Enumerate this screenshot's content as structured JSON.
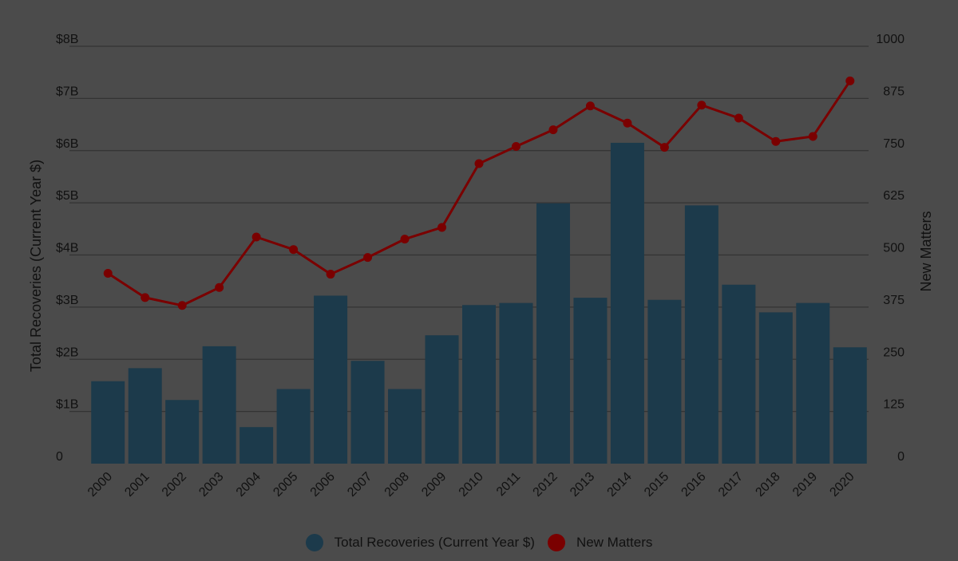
{
  "chart_data": {
    "type": "bar",
    "categories": [
      "2000",
      "2001",
      "2002",
      "2003",
      "2004",
      "2005",
      "2006",
      "2007",
      "2008",
      "2009",
      "2010",
      "2011",
      "2012",
      "2013",
      "2014",
      "2015",
      "2016",
      "2017",
      "2018",
      "2019",
      "2020"
    ],
    "series": [
      {
        "name": "Total Recoveries (Current Year $)",
        "type": "bar",
        "axis": "left",
        "color": "#1c3a4b",
        "values": [
          1.58,
          1.83,
          1.22,
          2.25,
          0.7,
          1.43,
          3.22,
          1.97,
          1.43,
          2.46,
          3.04,
          3.08,
          4.99,
          3.18,
          6.15,
          3.14,
          4.95,
          3.43,
          2.9,
          3.08,
          2.23
        ]
      },
      {
        "name": "New Matters",
        "type": "line",
        "axis": "right",
        "color": "#7a0000",
        "values": [
          456,
          398,
          379,
          422,
          543,
          513,
          454,
          494,
          538,
          566,
          719,
          760,
          800,
          857,
          816,
          758,
          859,
          828,
          772,
          784,
          917
        ]
      }
    ],
    "y_left": {
      "label": "Total Recoveries (Current Year $)",
      "range": [
        0,
        8
      ],
      "ticks": [
        0,
        1,
        2,
        3,
        4,
        5,
        6,
        7,
        8
      ],
      "tick_labels": [
        "0",
        "$1B",
        "$2B",
        "$3B",
        "$4B",
        "$5B",
        "$6B",
        "$7B",
        "$8B"
      ]
    },
    "y_right": {
      "label": "New Matters",
      "range": [
        0,
        1000
      ],
      "ticks": [
        0,
        125,
        250,
        375,
        500,
        625,
        750,
        875,
        1000
      ],
      "tick_labels": [
        "0",
        "125",
        "250",
        "375",
        "500",
        "625",
        "750",
        "875",
        "1000"
      ]
    },
    "grid": true,
    "legend": "bottom-center"
  }
}
